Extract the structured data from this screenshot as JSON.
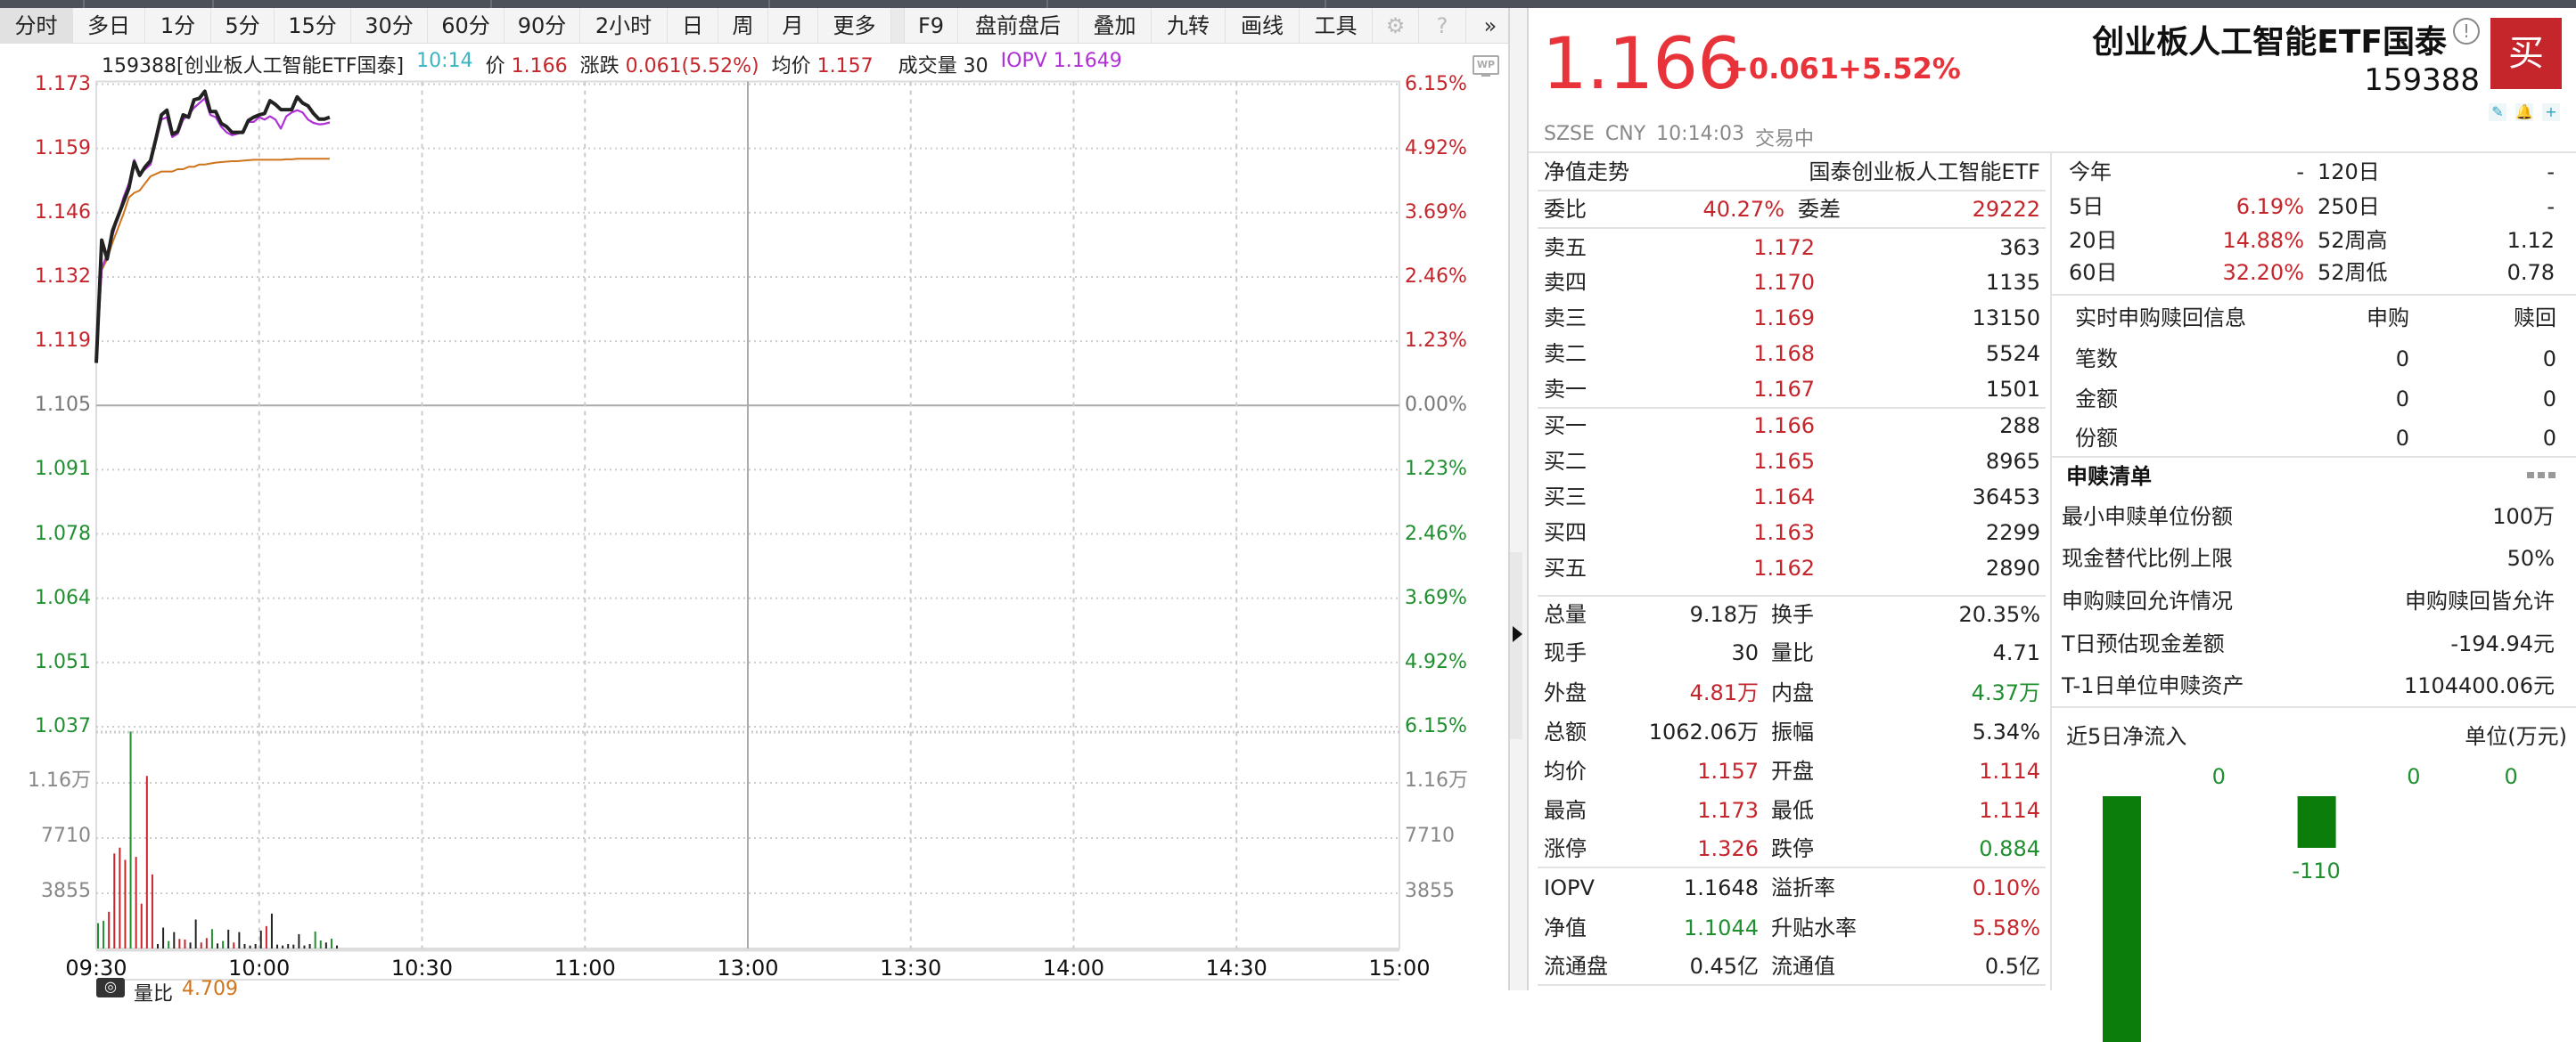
{
  "toolbar": {
    "periods": [
      "分时",
      "多日",
      "1分",
      "5分",
      "15分",
      "30分",
      "60分",
      "90分",
      "2小时",
      "日",
      "周",
      "月",
      "更多"
    ],
    "tools": [
      "F9",
      "盘前盘后",
      "叠加",
      "九转",
      "画线",
      "工具"
    ],
    "selected": "分时",
    "icons": [
      "gear-icon",
      "help-icon",
      "double-chevron-right-icon"
    ]
  },
  "info": {
    "code_name": "159388[创业板人工智能ETF国泰]",
    "time": "10:14",
    "price_label": "价",
    "price": "1.166",
    "change_label": "涨跌",
    "change": "0.061(5.52%)",
    "avg_label": "均价",
    "avg": "1.157",
    "vol_label": "成交量",
    "vol": "30",
    "iopv_label": "IOPV",
    "iopv": "1.1649",
    "wp_label": "WP"
  },
  "chart_data": {
    "type": "line",
    "prev_close": 1.105,
    "x_ticks": [
      "09:30",
      "10:00",
      "10:30",
      "11:00",
      "13:00",
      "13:30",
      "14:00",
      "14:30",
      "15:00"
    ],
    "y_ticks_left": [
      "1.173",
      "1.159",
      "1.146",
      "1.132",
      "1.119",
      "1.105",
      "1.091",
      "1.078",
      "1.064",
      "1.051",
      "1.037"
    ],
    "y_ticks_right": [
      "6.15%",
      "4.92%",
      "3.69%",
      "2.46%",
      "1.23%",
      "0.00%",
      "1.23%",
      "2.46%",
      "3.69%",
      "4.92%",
      "6.15%"
    ],
    "ylim": [
      1.037,
      1.173
    ],
    "volume_ticks": [
      "1.16万",
      "7710",
      "3855"
    ],
    "volume_tick_values": [
      11565,
      7710,
      3855
    ],
    "grid": true,
    "colors": {
      "price": "#222222",
      "iopv": "#b030d8",
      "avg": "#d0741c",
      "up": "#c4262c",
      "down": "#1f8f2f",
      "flat": "#222222"
    },
    "series": [
      {
        "name": "价",
        "key": "price",
        "values": [
          1.114,
          1.14,
          1.136,
          1.142,
          1.145,
          1.148,
          1.151,
          1.1565,
          1.1537,
          1.1555,
          1.1568,
          1.1615,
          1.1665,
          1.1675,
          1.1624,
          1.163,
          1.1665,
          1.166,
          1.1697,
          1.17,
          1.1715,
          1.1672,
          1.1672,
          1.1647,
          1.164,
          1.1628,
          1.1628,
          1.1628,
          1.1653,
          1.166,
          1.1665,
          1.1668,
          1.1695,
          1.1687,
          1.1676,
          1.1676,
          1.1676,
          1.1703,
          1.169,
          1.1684,
          1.1668,
          1.1656,
          1.1656,
          1.166
        ]
      },
      {
        "name": "IOPV",
        "key": "iopv",
        "values": [
          1.114,
          1.134,
          1.137,
          1.141,
          1.145,
          1.149,
          1.152,
          1.157,
          1.154,
          1.155,
          1.156,
          1.161,
          1.1655,
          1.166,
          1.1618,
          1.1625,
          1.1655,
          1.1665,
          1.168,
          1.169,
          1.17,
          1.1665,
          1.166,
          1.164,
          1.1628,
          1.1622,
          1.1625,
          1.163,
          1.165,
          1.165,
          1.166,
          1.1655,
          1.1662,
          1.1655,
          1.1636,
          1.1662,
          1.167,
          1.1675,
          1.167,
          1.1655,
          1.1648,
          1.1645,
          1.1646,
          1.1649
        ]
      },
      {
        "name": "均价",
        "key": "avg",
        "values": [
          1.114,
          1.1336,
          1.136,
          1.1395,
          1.1425,
          1.1455,
          1.149,
          1.15,
          1.1505,
          1.152,
          1.1535,
          1.154,
          1.1545,
          1.1545,
          1.1545,
          1.155,
          1.155,
          1.1555,
          1.1555,
          1.156,
          1.156,
          1.1562,
          1.1564,
          1.1565,
          1.1566,
          1.1567,
          1.1567,
          1.1568,
          1.1569,
          1.157,
          1.157,
          1.157,
          1.157,
          1.157,
          1.157,
          1.1571,
          1.1571,
          1.1572,
          1.1572,
          1.1572,
          1.1572,
          1.1572,
          1.1572,
          1.1572
        ]
      }
    ],
    "volume": {
      "values": [
        1771,
        1938,
        2563,
        6627,
        7044,
        6190,
        15151,
        6398,
        3126,
        12046,
        5168,
        313,
        1459,
        521,
        1146,
        667,
        625,
        417,
        2021,
        417,
        729,
        1354,
        354,
        521,
        1313,
        417,
        1146,
        313,
        208,
        313,
        1250,
        1563,
        2438,
        271,
        208,
        313,
        271,
        1000,
        208,
        313,
        1188,
        563,
        417,
        688,
        208
      ],
      "direction": [
        "down",
        "down",
        "up",
        "up",
        "up",
        "up",
        "down",
        "up",
        "up",
        "up",
        "up",
        "flat",
        "flat",
        "down",
        "flat",
        "up",
        "up",
        "flat",
        "flat",
        "up",
        "up",
        "down",
        "flat",
        "down",
        "flat",
        "up",
        "flat",
        "flat",
        "flat",
        "flat",
        "flat",
        "up",
        "flat",
        "flat",
        "flat",
        "flat",
        "flat",
        "flat",
        "flat",
        "flat",
        "down",
        "down",
        "flat",
        "down",
        "flat"
      ]
    }
  },
  "bottom_row": {
    "label": "量比",
    "value": "4.709"
  },
  "quote": {
    "price": "1.166",
    "change": "+0.061",
    "change_pct": "+5.52%",
    "name": "创业板人工智能ETF国泰",
    "code": "159388",
    "exchange": "SZSE",
    "currency": "CNY",
    "time": "10:14:03",
    "status": "交易中",
    "buy_label": "买",
    "alert_label": "!"
  },
  "nav": {
    "label": "净值走势",
    "value": "国泰创业板人工智能ETF"
  },
  "weibi": {
    "label": "委比",
    "value": "40.27%",
    "diff_label": "委差",
    "diff": "29222"
  },
  "asks": [
    {
      "label": "卖五",
      "price": "1.172",
      "qty": "363"
    },
    {
      "label": "卖四",
      "price": "1.170",
      "qty": "1135"
    },
    {
      "label": "卖三",
      "price": "1.169",
      "qty": "13150"
    },
    {
      "label": "卖二",
      "price": "1.168",
      "qty": "5524"
    },
    {
      "label": "卖一",
      "price": "1.167",
      "qty": "1501"
    }
  ],
  "bids": [
    {
      "label": "买一",
      "price": "1.166",
      "qty": "288"
    },
    {
      "label": "买二",
      "price": "1.165",
      "qty": "8965"
    },
    {
      "label": "买三",
      "price": "1.164",
      "qty": "36453"
    },
    {
      "label": "买四",
      "price": "1.163",
      "qty": "2299"
    },
    {
      "label": "买五",
      "price": "1.162",
      "qty": "2890"
    }
  ],
  "stats": [
    {
      "l1": "总量",
      "v1": "9.18万",
      "c1": "",
      "l2": "换手",
      "v2": "20.35%",
      "c2": ""
    },
    {
      "l1": "现手",
      "v1": "30",
      "c1": "",
      "l2": "量比",
      "v2": "4.71",
      "c2": ""
    },
    {
      "l1": "外盘",
      "v1": "4.81万",
      "c1": "red",
      "l2": "内盘",
      "v2": "4.37万",
      "c2": "green"
    },
    {
      "l1": "总额",
      "v1": "1062.06万",
      "c1": "",
      "l2": "振幅",
      "v2": "5.34%",
      "c2": ""
    },
    {
      "l1": "均价",
      "v1": "1.157",
      "c1": "red",
      "l2": "开盘",
      "v2": "1.114",
      "c2": "red"
    },
    {
      "l1": "最高",
      "v1": "1.173",
      "c1": "red",
      "l2": "最低",
      "v2": "1.114",
      "c2": "red"
    },
    {
      "l1": "涨停",
      "v1": "1.326",
      "c1": "red",
      "l2": "跌停",
      "v2": "0.884",
      "c2": "green"
    }
  ],
  "etf_stats": [
    {
      "l1": "IOPV",
      "v1": "1.1648",
      "c1": "",
      "l2": "溢折率",
      "v2": "0.10%",
      "c2": "red"
    },
    {
      "l1": "净值",
      "v1": "1.1044",
      "c1": "green",
      "l2": "升贴水率",
      "v2": "5.58%",
      "c2": "red"
    },
    {
      "l1": "流通盘",
      "v1": "0.45亿",
      "c1": "",
      "l2": "流通值",
      "v2": "0.5亿",
      "c2": ""
    }
  ],
  "periods_perf": [
    {
      "l1": "今年",
      "v1": "-",
      "c1": "",
      "l2": "120日",
      "v2": "-"
    },
    {
      "l1": "5日",
      "v1": "6.19%",
      "c1": "red",
      "l2": "250日",
      "v2": "-"
    },
    {
      "l1": "20日",
      "v1": "14.88%",
      "c1": "red",
      "l2": "52周高",
      "v2": "1.12"
    },
    {
      "l1": "60日",
      "v1": "32.20%",
      "c1": "red",
      "l2": "52周低",
      "v2": "0.78"
    }
  ],
  "realtime": {
    "title": "实时申购赎回信息",
    "col1": "申购",
    "col2": "赎回",
    "rows": [
      {
        "label": "笔数",
        "a": "0",
        "b": "0"
      },
      {
        "label": "金额",
        "a": "0",
        "b": "0"
      },
      {
        "label": "份额",
        "a": "0",
        "b": "0"
      }
    ]
  },
  "creation": {
    "title": "申赎清单",
    "rows": [
      {
        "label": "最小申赎单位份额",
        "value": "100万"
      },
      {
        "label": "现金替代比例上限",
        "value": "50%"
      },
      {
        "label": "申购赎回允许情况",
        "value": "申购赎回皆允许"
      },
      {
        "label": "T日预估现金差额",
        "value": "-194.94元"
      },
      {
        "label": "T-1日单位申赎资产",
        "value": "1104400.06元"
      }
    ]
  },
  "netflow": {
    "title": "近5日净流入",
    "unit": "单位(万元)",
    "chart_data": {
      "type": "bar",
      "values": [
        null,
        0,
        -110,
        0,
        0
      ],
      "labels": [
        "",
        "0",
        "-110",
        "0",
        "0"
      ],
      "color": "#0a7d0a"
    }
  }
}
